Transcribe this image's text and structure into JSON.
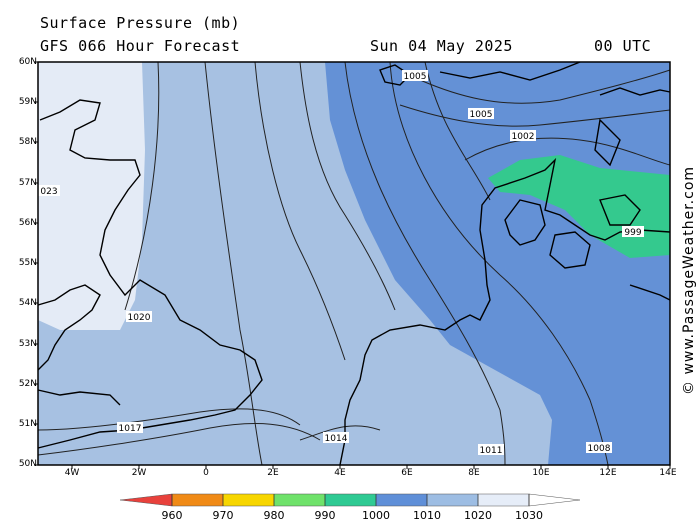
{
  "header": {
    "title": "Surface Pressure (mb)",
    "subtitle": "GFS 066 Hour Forecast",
    "date": "Sun 04 May 2025",
    "time": "00 UTC"
  },
  "credit": "© www.PassageWeather.com",
  "lat_labels": [
    "60N",
    "59N",
    "58N",
    "57N",
    "56N",
    "55N",
    "54N",
    "53N",
    "52N",
    "51N",
    "50N"
  ],
  "lon_labels": [
    "4W",
    "2W",
    "0",
    "2E",
    "4E",
    "6E",
    "8E",
    "10E",
    "12E",
    "14E"
  ],
  "isobar_labels": [
    "1005",
    "1005",
    "1002",
    "023",
    "999",
    "1020",
    "1017",
    "1014",
    "1011",
    "1008"
  ],
  "colorbar": {
    "ticks": [
      "960",
      "970",
      "980",
      "990",
      "1000",
      "1010",
      "1020",
      "1030"
    ],
    "colors": [
      "#e8413c",
      "#f08a16",
      "#f7d600",
      "#6fe26a",
      "#2fca93",
      "#5f8fd8",
      "#9dbde3",
      "#e6edf8"
    ]
  },
  "map_colors": {
    "land_fill": "#ffffff",
    "band_1020_plus": "#e4ebf6",
    "band_1010_1020": "#a7c1e2",
    "band_1000_1010": "#6491d6",
    "band_990_1000": "#34c98e"
  }
}
